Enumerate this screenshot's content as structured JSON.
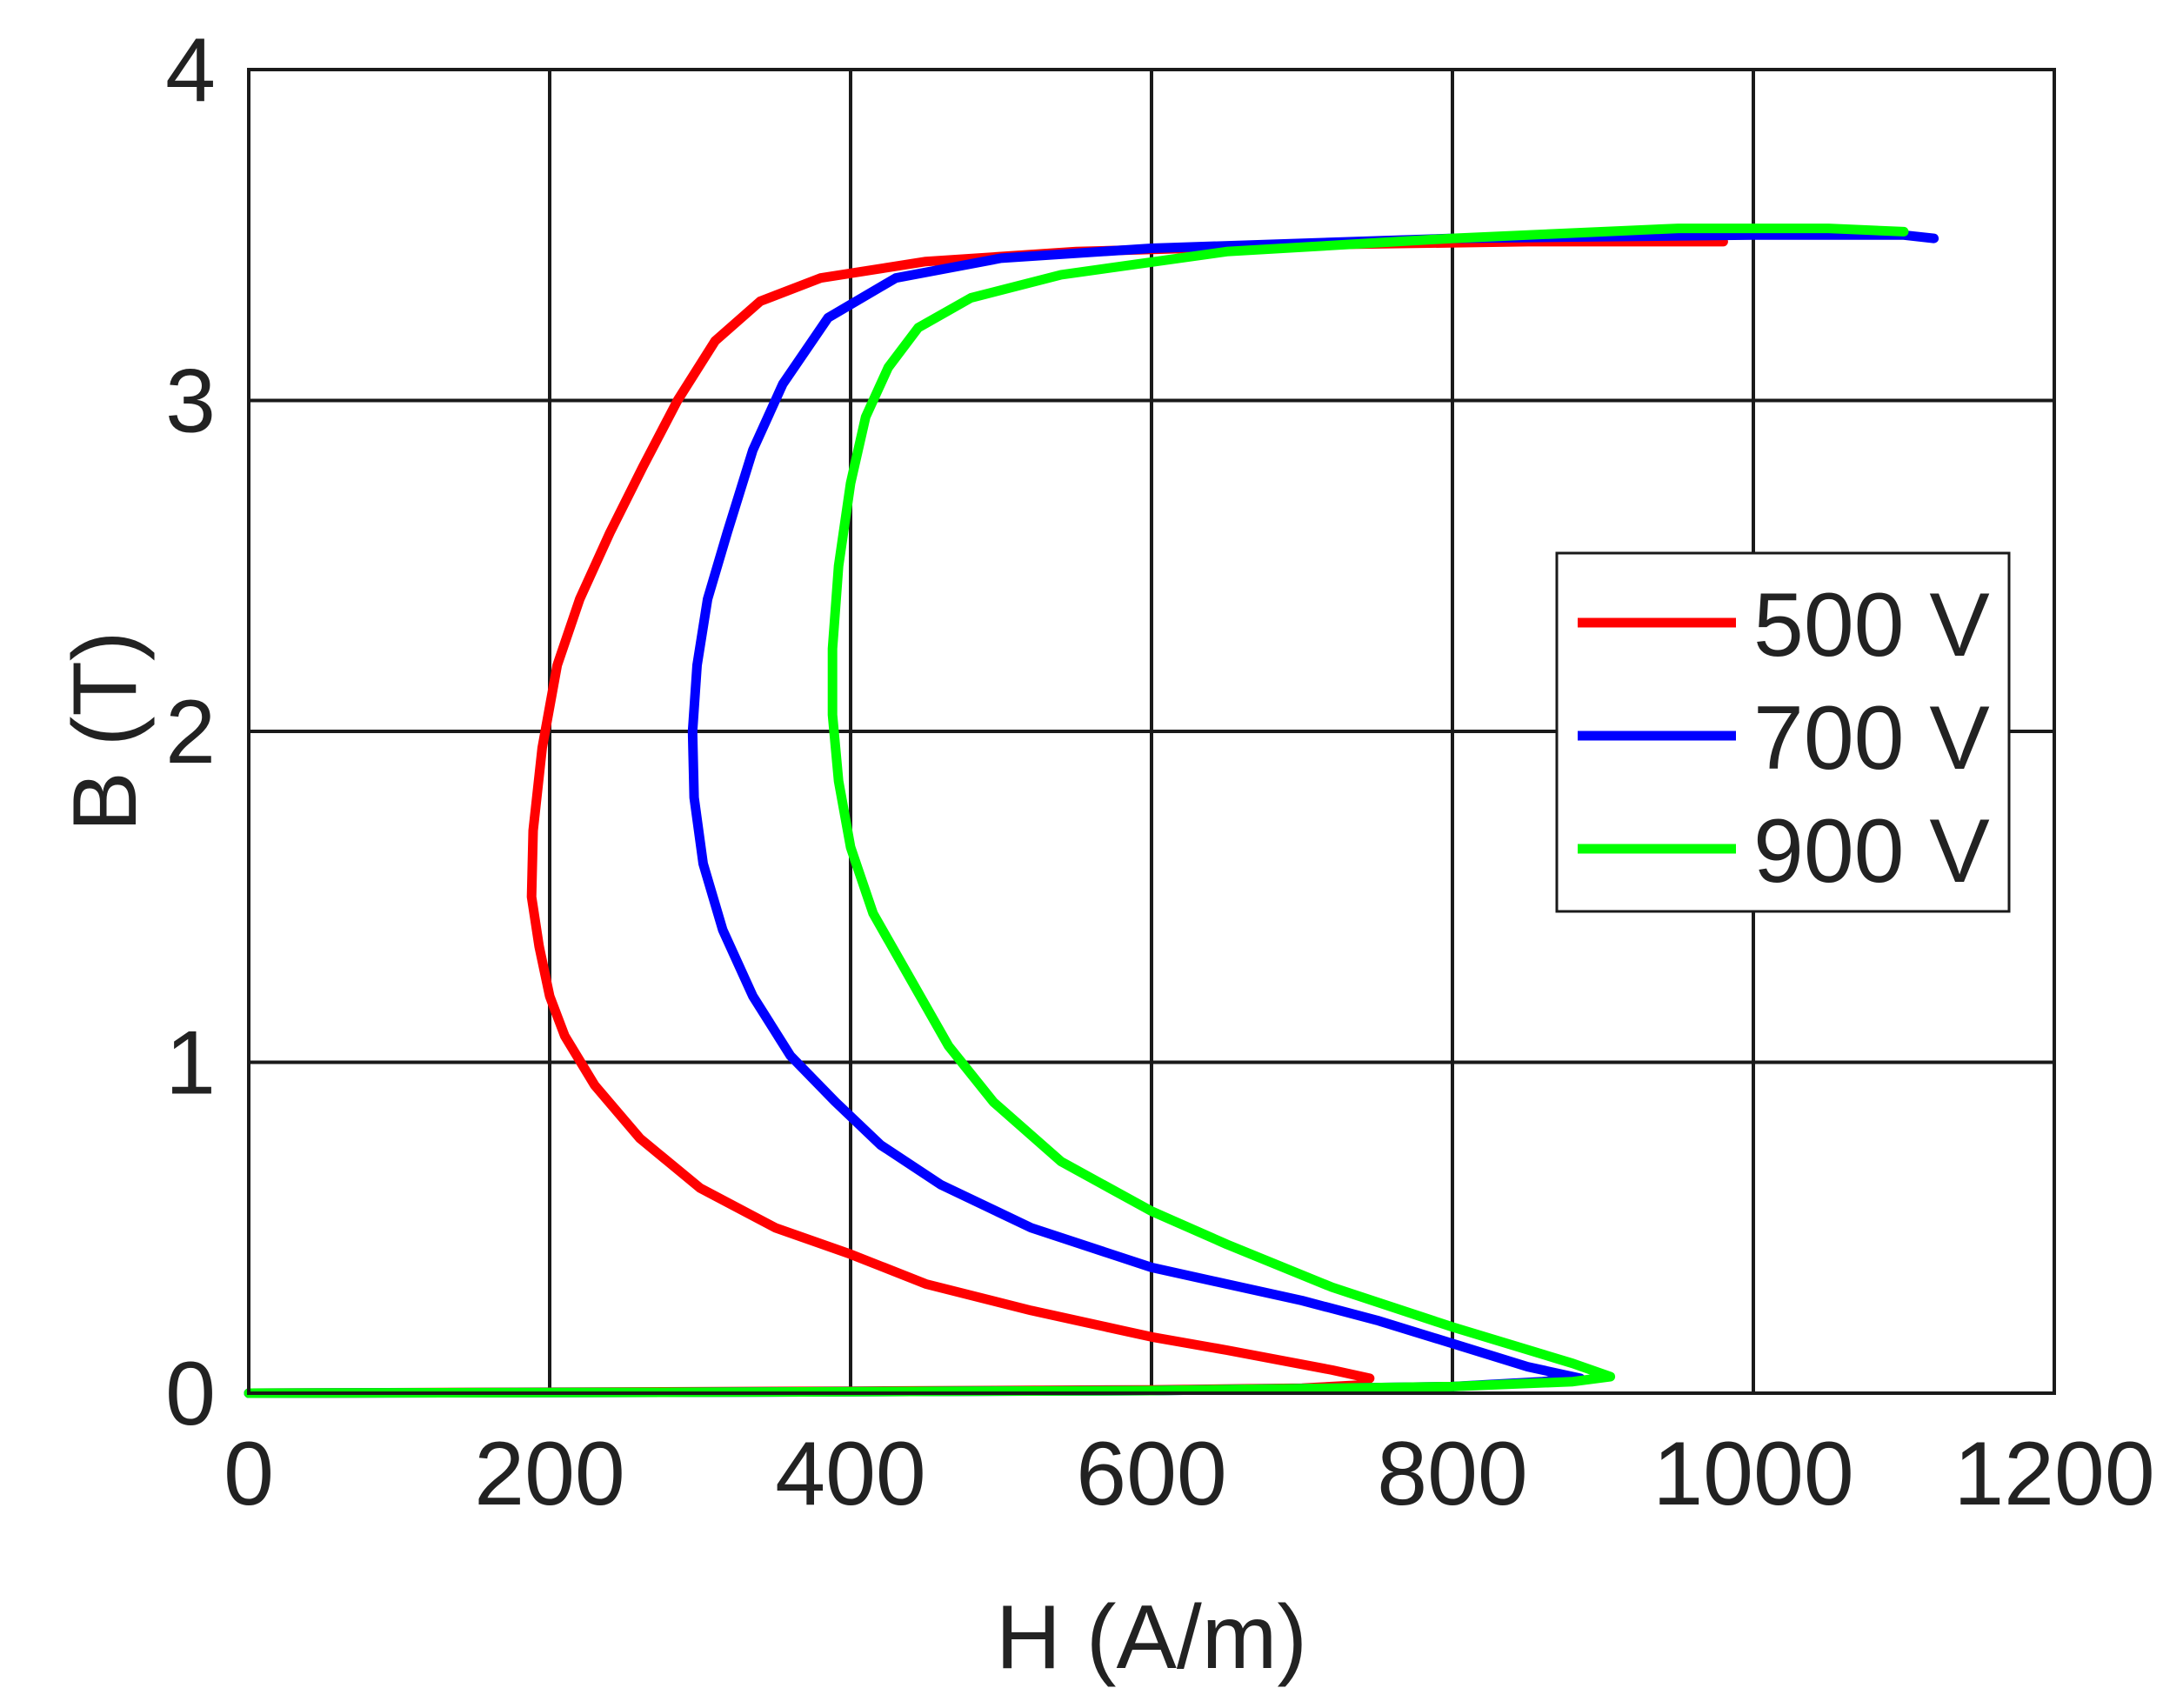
{
  "chart_data": {
    "type": "line",
    "title": "",
    "xlabel": "H (A/m)",
    "ylabel": "B (T)",
    "xlim": [
      0,
      1200
    ],
    "ylim": [
      0,
      4
    ],
    "xticks": [
      0,
      200,
      400,
      600,
      800,
      1000,
      1200
    ],
    "yticks": [
      0,
      1,
      2,
      3,
      4
    ],
    "xtick_labels": [
      "0",
      "200",
      "400",
      "600",
      "800",
      "1000",
      "1200"
    ],
    "ytick_labels": [
      "0",
      "1",
      "2",
      "3",
      "4"
    ],
    "grid": true,
    "legend_position": "right-center",
    "series": [
      {
        "name": "500 V",
        "color": "#ff0000",
        "points": [
          [
            0,
            0
          ],
          [
            200,
            0.003
          ],
          [
            400,
            0.006
          ],
          [
            600,
            0.01
          ],
          [
            700,
            0.015
          ],
          [
            740,
            0.025
          ],
          [
            745,
            0.045
          ],
          [
            720,
            0.07
          ],
          [
            650,
            0.13
          ],
          [
            600,
            0.17
          ],
          [
            520,
            0.25
          ],
          [
            450,
            0.33
          ],
          [
            400,
            0.42
          ],
          [
            350,
            0.5
          ],
          [
            300,
            0.62
          ],
          [
            260,
            0.77
          ],
          [
            230,
            0.93
          ],
          [
            210,
            1.08
          ],
          [
            200,
            1.2
          ],
          [
            193,
            1.35
          ],
          [
            188,
            1.5
          ],
          [
            189,
            1.7
          ],
          [
            195,
            1.95
          ],
          [
            205,
            2.2
          ],
          [
            220,
            2.4
          ],
          [
            240,
            2.6
          ],
          [
            262,
            2.8
          ],
          [
            285,
            3.0
          ],
          [
            310,
            3.18
          ],
          [
            340,
            3.3
          ],
          [
            380,
            3.37
          ],
          [
            450,
            3.42
          ],
          [
            550,
            3.45
          ],
          [
            700,
            3.47
          ],
          [
            850,
            3.48
          ],
          [
            950,
            3.48
          ],
          [
            980,
            3.48
          ],
          [
            900,
            3.485
          ]
        ]
      },
      {
        "name": "700 V",
        "color": "#0000ff",
        "points": [
          [
            0,
            0
          ],
          [
            300,
            0.003
          ],
          [
            600,
            0.008
          ],
          [
            800,
            0.02
          ],
          [
            860,
            0.035
          ],
          [
            885,
            0.045
          ],
          [
            850,
            0.08
          ],
          [
            800,
            0.15
          ],
          [
            750,
            0.22
          ],
          [
            700,
            0.28
          ],
          [
            600,
            0.38
          ],
          [
            520,
            0.5
          ],
          [
            460,
            0.63
          ],
          [
            420,
            0.75
          ],
          [
            390,
            0.88
          ],
          [
            360,
            1.02
          ],
          [
            335,
            1.2
          ],
          [
            315,
            1.4
          ],
          [
            302,
            1.6
          ],
          [
            296,
            1.8
          ],
          [
            295,
            2.0
          ],
          [
            298,
            2.2
          ],
          [
            305,
            2.4
          ],
          [
            318,
            2.6
          ],
          [
            335,
            2.85
          ],
          [
            355,
            3.05
          ],
          [
            385,
            3.25
          ],
          [
            430,
            3.37
          ],
          [
            500,
            3.43
          ],
          [
            600,
            3.46
          ],
          [
            800,
            3.49
          ],
          [
            1000,
            3.5
          ],
          [
            1100,
            3.5
          ],
          [
            1120,
            3.49
          ]
        ]
      },
      {
        "name": "900 V",
        "color": "#00ff00",
        "points": [
          [
            0,
            0
          ],
          [
            300,
            0.003
          ],
          [
            600,
            0.008
          ],
          [
            800,
            0.02
          ],
          [
            880,
            0.035
          ],
          [
            905,
            0.05
          ],
          [
            880,
            0.09
          ],
          [
            800,
            0.2
          ],
          [
            720,
            0.32
          ],
          [
            650,
            0.45
          ],
          [
            600,
            0.55
          ],
          [
            540,
            0.7
          ],
          [
            495,
            0.88
          ],
          [
            465,
            1.05
          ],
          [
            440,
            1.25
          ],
          [
            415,
            1.45
          ],
          [
            400,
            1.65
          ],
          [
            392,
            1.85
          ],
          [
            388,
            2.05
          ],
          [
            388,
            2.25
          ],
          [
            392,
            2.5
          ],
          [
            400,
            2.75
          ],
          [
            410,
            2.95
          ],
          [
            425,
            3.1
          ],
          [
            445,
            3.22
          ],
          [
            480,
            3.31
          ],
          [
            540,
            3.38
          ],
          [
            650,
            3.45
          ],
          [
            800,
            3.49
          ],
          [
            950,
            3.52
          ],
          [
            1050,
            3.52
          ],
          [
            1100,
            3.51
          ]
        ]
      }
    ]
  }
}
